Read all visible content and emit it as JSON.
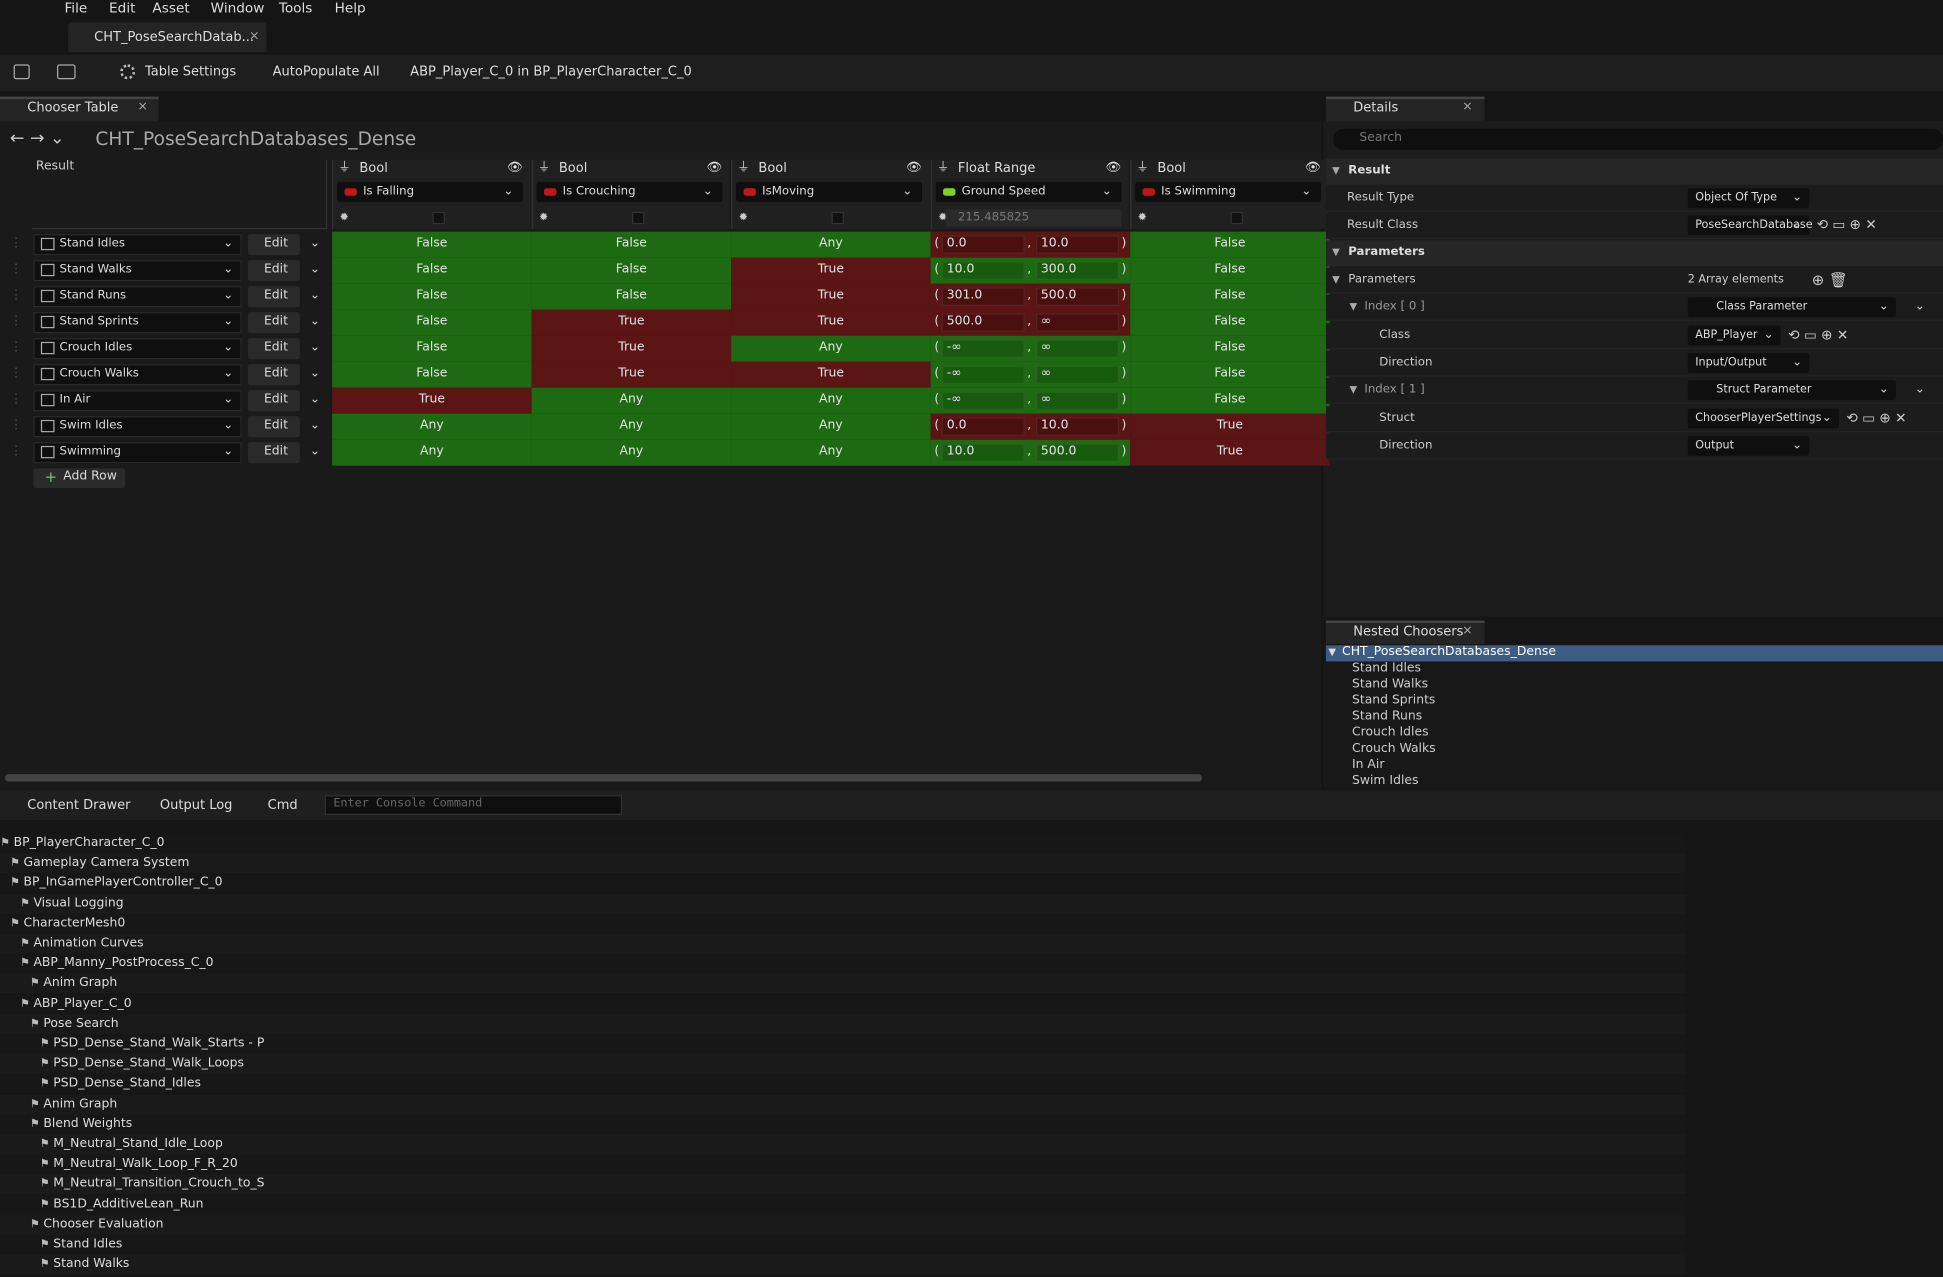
{
  "menu": [
    "File",
    "Edit",
    "Asset",
    "Window",
    "Tools",
    "Help"
  ],
  "document_tab": "CHT_PoseSearchDatab...",
  "toolbar": {
    "table_settings": "Table Settings",
    "autopopulate": "AutoPopulate All",
    "debug_target": "ABP_Player_C_0 in BP_PlayerCharacter_C_0"
  },
  "chooser": {
    "tab": "Chooser Table",
    "breadcrumb": "CHT_PoseSearchDatabases_Dense",
    "result_header": "Result",
    "columns": [
      {
        "type": "Bool",
        "name": "Is Falling",
        "color": "#c01818"
      },
      {
        "type": "Bool",
        "name": "Is Crouching",
        "color": "#c01818"
      },
      {
        "type": "Bool",
        "name": "IsMoving",
        "color": "#c01818"
      },
      {
        "type": "Float Range",
        "name": "Ground Speed",
        "color": "#7ed321",
        "preview": "215.485825"
      },
      {
        "type": "Bool",
        "name": "Is Swimming",
        "color": "#c01818"
      }
    ],
    "rows": [
      {
        "result": "Stand Idles",
        "edit": "Edit",
        "cells": [
          "False",
          "False",
          "Any",
          {
            "min": "0.0",
            "max": "10.0"
          },
          "False"
        ],
        "colors": [
          "#1d6a12",
          "#1d6a12",
          "#1d6a12",
          "#5b1515",
          "#1d6a12"
        ]
      },
      {
        "result": "Stand Walks",
        "edit": "Edit",
        "cells": [
          "False",
          "False",
          "True",
          {
            "min": "10.0",
            "max": "300.0"
          },
          "False"
        ],
        "colors": [
          "#1d6a12",
          "#1d6a12",
          "#5b1515",
          "#1d6a12",
          "#1d6a12"
        ]
      },
      {
        "result": "Stand Runs",
        "edit": "Edit",
        "cells": [
          "False",
          "False",
          "True",
          {
            "min": "301.0",
            "max": "500.0"
          },
          "False"
        ],
        "colors": [
          "#1d6a12",
          "#1d6a12",
          "#5b1515",
          "#5b1515",
          "#1d6a12"
        ]
      },
      {
        "result": "Stand Sprints",
        "edit": "Edit",
        "cells": [
          "False",
          "True",
          "True",
          {
            "min": "500.0",
            "max": "∞"
          },
          "False"
        ],
        "colors": [
          "#1d6a12",
          "#5b1515",
          "#5b1515",
          "#5b1515",
          "#1d6a12"
        ]
      },
      {
        "result": "Crouch Idles",
        "edit": "Edit",
        "cells": [
          "False",
          "True",
          "Any",
          {
            "min": "-∞",
            "max": "∞"
          },
          "False"
        ],
        "colors": [
          "#1d6a12",
          "#5b1515",
          "#1d6a12",
          "#1d6a12",
          "#1d6a12"
        ]
      },
      {
        "result": "Crouch Walks",
        "edit": "Edit",
        "cells": [
          "False",
          "True",
          "True",
          {
            "min": "-∞",
            "max": "∞"
          },
          "False"
        ],
        "colors": [
          "#1d6a12",
          "#5b1515",
          "#5b1515",
          "#1d6a12",
          "#1d6a12"
        ]
      },
      {
        "result": "In Air",
        "edit": "Edit",
        "cells": [
          "True",
          "Any",
          "Any",
          {
            "min": "-∞",
            "max": "∞"
          },
          "False"
        ],
        "colors": [
          "#5b1515",
          "#1d6a12",
          "#1d6a12",
          "#1d6a12",
          "#1d6a12"
        ]
      },
      {
        "result": "Swim Idles",
        "edit": "Edit",
        "cells": [
          "Any",
          "Any",
          "Any",
          {
            "min": "0.0",
            "max": "10.0"
          },
          "True"
        ],
        "colors": [
          "#1d6a12",
          "#1d6a12",
          "#1d6a12",
          "#5b1515",
          "#5b1515"
        ]
      },
      {
        "result": "Swimming",
        "edit": "Edit",
        "cells": [
          "Any",
          "Any",
          "Any",
          {
            "min": "10.0",
            "max": "500.0"
          },
          "True"
        ],
        "colors": [
          "#1d6a12",
          "#1d6a12",
          "#1d6a12",
          "#1d6a12",
          "#5b1515"
        ]
      }
    ],
    "add_row": "Add Row"
  },
  "details": {
    "tab": "Details",
    "search": "Search",
    "rows": [
      {
        "label": "Result",
        "kind": "section"
      },
      {
        "label": "Result Type",
        "value": "Object Of Type"
      },
      {
        "label": "Result Class",
        "value": "PoseSearchDatabase"
      },
      {
        "label": "Parameters",
        "kind": "section"
      },
      {
        "label": "Parameters",
        "value": "2 Array elements",
        "kind": "plain"
      },
      {
        "label": "Index [ 0 ]",
        "value": "Class Parameter",
        "kind": "index"
      },
      {
        "label": "Class",
        "value": "ABP_Player"
      },
      {
        "label": "Direction",
        "value": "Input/Output"
      },
      {
        "label": "Index [ 1 ]",
        "value": "Struct Parameter",
        "kind": "index"
      },
      {
        "label": "Struct",
        "value": "ChooserPlayerSettings"
      },
      {
        "label": "Direction",
        "value": "Output"
      }
    ]
  },
  "nested": {
    "tab": "Nested Choosers",
    "root": "CHT_PoseSearchDatabases_Dense",
    "items": [
      "Stand Idles",
      "Stand Walks",
      "Stand Sprints",
      "Stand Runs",
      "Crouch Idles",
      "Crouch Walks",
      "In Air",
      "Swim Idles"
    ]
  },
  "bottom_bar": {
    "content_drawer": "Content Drawer",
    "output_log": "Output Log",
    "cmd": "Cmd",
    "console": "Enter Console Command"
  },
  "rewind_tree": [
    "BP_PlayerCharacter_C_0",
    "Gameplay Camera System",
    "BP_InGamePlayerController_C_0",
    "Visual Logging",
    "CharacterMesh0",
    "Animation Curves",
    "ABP_Manny_PostProcess_C_0",
    "Anim Graph",
    "ABP_Player_C_0",
    "Pose Search",
    "PSD_Dense_Stand_Walk_Starts - P",
    "PSD_Dense_Stand_Walk_Loops",
    "PSD_Dense_Stand_Idles",
    "Anim Graph",
    "Blend Weights",
    "M_Neutral_Stand_Idle_Loop",
    "M_Neutral_Walk_Loop_F_R_20",
    "M_Neutral_Transition_Crouch_to_S",
    "BS1D_AdditiveLean_Run",
    "Chooser Evaluation",
    "Stand Idles",
    "Stand Walks"
  ]
}
